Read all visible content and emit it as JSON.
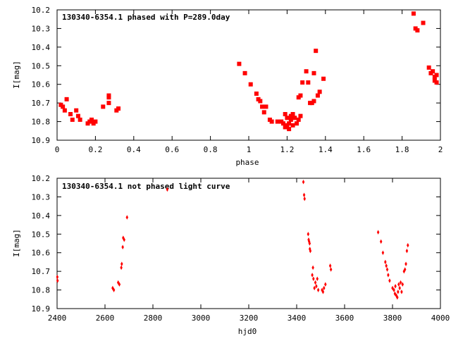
{
  "chart_data": [
    {
      "type": "scatter",
      "title": "130340-6354.1 phased with P=289.0day",
      "xlabel": "phase",
      "ylabel": "I[mag]",
      "xlim": [
        0,
        2
      ],
      "ylim": [
        10.9,
        10.2
      ],
      "y_inverted": true,
      "grid": false,
      "marker_color": "#ff0000",
      "xticks": [
        0,
        0.2,
        0.4,
        0.6,
        0.8,
        1,
        1.2,
        1.4,
        1.6,
        1.8,
        2
      ],
      "xtick_labels": [
        "0",
        "0.2",
        "0.4",
        "0.6",
        "0.8",
        "1",
        "1.2",
        "1.4",
        "1.6",
        "1.8",
        "2"
      ],
      "yticks": [
        10.2,
        10.3,
        10.4,
        10.5,
        10.6,
        10.7,
        10.8,
        10.9
      ],
      "ytick_labels": [
        "10.2",
        "10.3",
        "10.4",
        "10.5",
        "10.6",
        "10.7",
        "10.8",
        "10.9"
      ],
      "points": [
        [
          0.02,
          10.71
        ],
        [
          0.03,
          10.72
        ],
        [
          0.04,
          10.74
        ],
        [
          0.05,
          10.68
        ],
        [
          0.07,
          10.76
        ],
        [
          0.08,
          10.79
        ],
        [
          0.1,
          10.74
        ],
        [
          0.11,
          10.77
        ],
        [
          0.12,
          10.79
        ],
        [
          0.16,
          10.81
        ],
        [
          0.17,
          10.8
        ],
        [
          0.18,
          10.79
        ],
        [
          0.19,
          10.81
        ],
        [
          0.2,
          10.8
        ],
        [
          0.24,
          10.72
        ],
        [
          0.27,
          10.66
        ],
        [
          0.27,
          10.67
        ],
        [
          0.27,
          10.7
        ],
        [
          0.31,
          10.74
        ],
        [
          0.32,
          10.73
        ],
        [
          0.95,
          10.49
        ],
        [
          0.98,
          10.54
        ],
        [
          1.01,
          10.6
        ],
        [
          1.04,
          10.65
        ],
        [
          1.05,
          10.68
        ],
        [
          1.06,
          10.69
        ],
        [
          1.07,
          10.72
        ],
        [
          1.08,
          10.75
        ],
        [
          1.09,
          10.72
        ],
        [
          1.11,
          10.79
        ],
        [
          1.12,
          10.8
        ],
        [
          1.15,
          10.8
        ],
        [
          1.17,
          10.8
        ],
        [
          1.18,
          10.81
        ],
        [
          1.19,
          10.76
        ],
        [
          1.19,
          10.83
        ],
        [
          1.2,
          10.78
        ],
        [
          1.2,
          10.82
        ],
        [
          1.21,
          10.84
        ],
        [
          1.21,
          10.81
        ],
        [
          1.22,
          10.77
        ],
        [
          1.22,
          10.79
        ],
        [
          1.23,
          10.76
        ],
        [
          1.23,
          10.82
        ],
        [
          1.24,
          10.78
        ],
        [
          1.25,
          10.81
        ],
        [
          1.26,
          10.79
        ],
        [
          1.26,
          10.67
        ],
        [
          1.27,
          10.66
        ],
        [
          1.27,
          10.77
        ],
        [
          1.28,
          10.59
        ],
        [
          1.3,
          10.53
        ],
        [
          1.31,
          10.59
        ],
        [
          1.32,
          10.7
        ],
        [
          1.33,
          10.7
        ],
        [
          1.34,
          10.69
        ],
        [
          1.34,
          10.54
        ],
        [
          1.35,
          10.42
        ],
        [
          1.36,
          10.66
        ],
        [
          1.37,
          10.64
        ],
        [
          1.39,
          10.57
        ],
        [
          1.86,
          10.22
        ],
        [
          1.87,
          10.3
        ],
        [
          1.88,
          10.31
        ],
        [
          1.91,
          10.27
        ],
        [
          1.94,
          10.51
        ],
        [
          1.95,
          10.54
        ],
        [
          1.96,
          10.53
        ],
        [
          1.97,
          10.56
        ],
        [
          1.97,
          10.58
        ],
        [
          1.98,
          10.55
        ],
        [
          1.98,
          10.59
        ]
      ]
    },
    {
      "type": "scatter",
      "title": "130340-6354.1 not phased light curve",
      "xlabel": "hjd0",
      "ylabel": "I[mag]",
      "xlim": [
        2400,
        4000
      ],
      "ylim": [
        10.9,
        10.2
      ],
      "y_inverted": true,
      "grid": false,
      "marker_color": "#ff0000",
      "xticks": [
        2400,
        2600,
        2800,
        3000,
        3200,
        3400,
        3600,
        3800,
        4000
      ],
      "xtick_labels": [
        "2400",
        "2600",
        "2800",
        "3000",
        "3200",
        "3400",
        "3600",
        "3800",
        "4000"
      ],
      "yticks": [
        10.2,
        10.3,
        10.4,
        10.5,
        10.6,
        10.7,
        10.8,
        10.9
      ],
      "ytick_labels": [
        "10.2",
        "10.3",
        "10.4",
        "10.5",
        "10.6",
        "10.7",
        "10.8",
        "10.9"
      ],
      "points": [
        [
          2401,
          10.73
        ],
        [
          2402,
          10.75
        ],
        [
          2632,
          10.79
        ],
        [
          2637,
          10.8
        ],
        [
          2655,
          10.76
        ],
        [
          2660,
          10.77
        ],
        [
          2668,
          10.68
        ],
        [
          2670,
          10.66
        ],
        [
          2674,
          10.57
        ],
        [
          2676,
          10.52
        ],
        [
          2680,
          10.53
        ],
        [
          2692,
          10.41
        ],
        [
          2860,
          10.26
        ],
        [
          3428,
          10.22
        ],
        [
          3431,
          10.29
        ],
        [
          3433,
          10.31
        ],
        [
          3448,
          10.5
        ],
        [
          3450,
          10.53
        ],
        [
          3452,
          10.54
        ],
        [
          3454,
          10.55
        ],
        [
          3455,
          10.58
        ],
        [
          3457,
          10.59
        ],
        [
          3465,
          10.72
        ],
        [
          3468,
          10.68
        ],
        [
          3470,
          10.74
        ],
        [
          3474,
          10.79
        ],
        [
          3478,
          10.76
        ],
        [
          3482,
          10.78
        ],
        [
          3486,
          10.74
        ],
        [
          3490,
          10.8
        ],
        [
          3506,
          10.8
        ],
        [
          3510,
          10.81
        ],
        [
          3514,
          10.79
        ],
        [
          3520,
          10.77
        ],
        [
          3540,
          10.67
        ],
        [
          3543,
          10.69
        ],
        [
          3740,
          10.49
        ],
        [
          3752,
          10.54
        ],
        [
          3760,
          10.6
        ],
        [
          3770,
          10.65
        ],
        [
          3774,
          10.67
        ],
        [
          3778,
          10.69
        ],
        [
          3782,
          10.72
        ],
        [
          3788,
          10.75
        ],
        [
          3800,
          10.79
        ],
        [
          3806,
          10.8
        ],
        [
          3810,
          10.82
        ],
        [
          3812,
          10.78
        ],
        [
          3816,
          10.83
        ],
        [
          3820,
          10.84
        ],
        [
          3823,
          10.81
        ],
        [
          3826,
          10.77
        ],
        [
          3830,
          10.79
        ],
        [
          3834,
          10.76
        ],
        [
          3838,
          10.81
        ],
        [
          3842,
          10.77
        ],
        [
          3848,
          10.7
        ],
        [
          3852,
          10.69
        ],
        [
          3856,
          10.66
        ],
        [
          3860,
          10.59
        ],
        [
          3864,
          10.56
        ]
      ]
    }
  ]
}
